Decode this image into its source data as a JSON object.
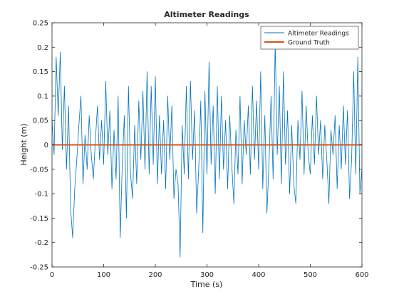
{
  "chart_data": {
    "type": "line",
    "title": "Altimeter Readings",
    "xlabel": "Time (s)",
    "ylabel": "Height (m)",
    "xlim": [
      0,
      600
    ],
    "ylim": [
      -0.25,
      0.25
    ],
    "xticks": [
      0,
      100,
      200,
      300,
      400,
      500,
      600
    ],
    "xtick_labels": [
      "0",
      "100",
      "200",
      "300",
      "400",
      "500",
      "600"
    ],
    "yticks": [
      -0.25,
      -0.2,
      -0.15,
      -0.1,
      -0.05,
      0,
      0.05,
      0.1,
      0.15,
      0.2,
      0.25
    ],
    "ytick_labels": [
      "-0.25",
      "-0.2",
      "-0.15",
      "-0.1",
      "-0.05",
      "0",
      "0.05",
      "0.1",
      "0.15",
      "0.2",
      "0.25"
    ],
    "grid": false,
    "legend_position": "top-right",
    "series": [
      {
        "name": "Altimeter Readings",
        "color": "#0072BD",
        "x": [
          0,
          4,
          8,
          12,
          16,
          20,
          24,
          28,
          32,
          36,
          40,
          44,
          48,
          52,
          56,
          60,
          64,
          68,
          72,
          76,
          80,
          84,
          88,
          92,
          96,
          100,
          104,
          108,
          112,
          116,
          120,
          124,
          128,
          132,
          136,
          140,
          144,
          148,
          152,
          156,
          160,
          164,
          168,
          172,
          176,
          180,
          184,
          188,
          192,
          196,
          200,
          204,
          208,
          212,
          216,
          220,
          224,
          228,
          232,
          236,
          240,
          244,
          248,
          252,
          256,
          260,
          264,
          268,
          272,
          276,
          280,
          284,
          288,
          292,
          296,
          300,
          304,
          308,
          312,
          316,
          320,
          324,
          328,
          332,
          336,
          340,
          344,
          348,
          352,
          356,
          360,
          364,
          368,
          372,
          376,
          380,
          384,
          388,
          392,
          396,
          400,
          404,
          408,
          412,
          416,
          420,
          424,
          428,
          432,
          436,
          440,
          444,
          448,
          452,
          456,
          460,
          464,
          468,
          472,
          476,
          480,
          484,
          488,
          492,
          496,
          500,
          504,
          508,
          512,
          516,
          520,
          524,
          528,
          532,
          536,
          540,
          544,
          548,
          552,
          556,
          560,
          564,
          568,
          572,
          576,
          580,
          584,
          588,
          592,
          596,
          600
        ],
        "y": [
          0.05,
          -0.02,
          0.18,
          0.06,
          0.19,
          -0.01,
          0.12,
          -0.05,
          0.08,
          -0.13,
          -0.19,
          -0.09,
          -0.03,
          0.04,
          0.1,
          -0.08,
          0.02,
          -0.05,
          0.06,
          -0.02,
          -0.07,
          0.01,
          0.08,
          -0.03,
          0.05,
          -0.04,
          0.13,
          -0.02,
          0.07,
          -0.09,
          0.03,
          -0.07,
          0.1,
          -0.19,
          -0.04,
          0.06,
          -0.15,
          0.12,
          -0.06,
          -0.11,
          0.04,
          -0.08,
          0.09,
          -0.03,
          0.11,
          -0.05,
          0.15,
          -0.06,
          0.12,
          -0.04,
          0.14,
          -0.08,
          0.06,
          -0.06,
          0.05,
          -0.09,
          0.1,
          -0.03,
          0.08,
          -0.11,
          -0.05,
          -0.08,
          -0.23,
          0.04,
          -0.06,
          0.12,
          -0.07,
          0.13,
          -0.03,
          0.07,
          -0.14,
          -0.05,
          0.09,
          -0.18,
          0.11,
          -0.06,
          0.17,
          -0.04,
          0.08,
          -0.1,
          0.12,
          -0.07,
          0.1,
          -0.05,
          0.05,
          -0.09,
          0.06,
          -0.04,
          -0.12,
          0.03,
          -0.06,
          0.1,
          -0.08,
          0.05,
          -0.02,
          0.08,
          -0.06,
          0.12,
          -0.03,
          0.09,
          -0.05,
          0.15,
          -0.09,
          0.06,
          -0.14,
          -0.04,
          0.1,
          -0.07,
          0.21,
          -0.02,
          0.12,
          -0.08,
          0.15,
          -0.04,
          0.07,
          -0.1,
          0.04,
          -0.08,
          -0.12,
          0.05,
          -0.03,
          0.11,
          -0.06,
          0.08,
          -0.02,
          -0.06,
          0.06,
          -0.04,
          0.1,
          -0.02,
          0.05,
          -0.07,
          0.04,
          -0.03,
          -0.12,
          0.03,
          -0.02,
          0.06,
          -0.09,
          0.04,
          -0.05,
          0.08,
          -0.04,
          0.07,
          -0.11,
          -0.03,
          0.15,
          -0.06,
          0.18,
          -0.1,
          -0.05
        ]
      },
      {
        "name": "Ground Truth",
        "color": "#D95319",
        "x": [
          0,
          600
        ],
        "y": [
          0,
          0
        ]
      }
    ]
  }
}
